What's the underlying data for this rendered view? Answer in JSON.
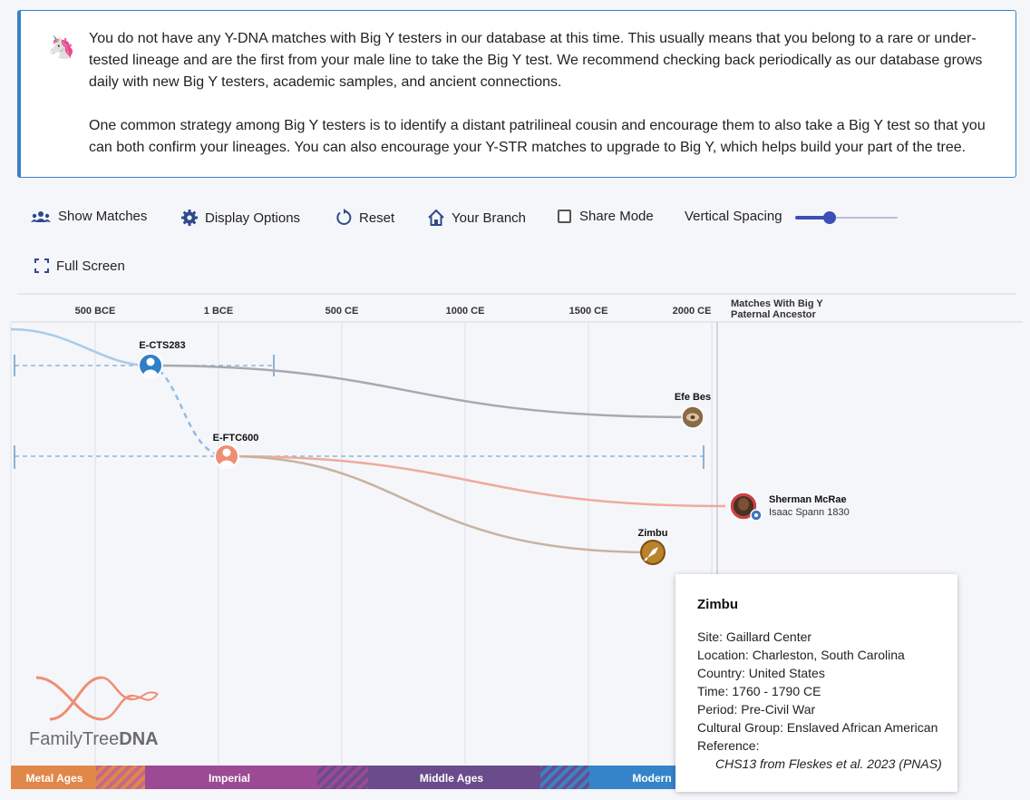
{
  "notice": {
    "emoji": "🦄",
    "paragraph1": "You do not have any Y-DNA matches with Big Y testers in our database at this time. This usually means that you belong to a rare or under-tested lineage and are the first from your male line to take the Big Y test. We recommend checking back periodically as our database grows daily with new Big Y testers, academic samples, and ancient connections.",
    "paragraph2": "One common strategy among Big Y testers is to identify a distant patrilineal cousin and encourage them to also take a Big Y test so that you can both confirm your lineages. You can also encourage your Y-STR matches to upgrade to Big Y, which helps build your part of the tree."
  },
  "toolbar": {
    "show_matches": "Show Matches",
    "display_options": "Display Options",
    "reset": "Reset",
    "your_branch": "Your Branch",
    "share_mode": "Share Mode",
    "vertical_spacing": "Vertical Spacing",
    "full_screen": "Full Screen"
  },
  "timeline": {
    "axis_ticks": [
      "500 BCE",
      "1 BCE",
      "500 CE",
      "1000 CE",
      "1500 CE",
      "2000 CE"
    ],
    "matches_header_line1": "Matches With Big Y",
    "matches_header_line2": "Paternal Ancestor",
    "nodes": {
      "ects283": "E-CTS283",
      "eftc600": "E-FTC600",
      "efe_bes": "Efe Bes",
      "zimbu": "Zimbu"
    },
    "match": {
      "name": "Sherman McRae",
      "ancestor": "Isaac Spann 1830"
    },
    "eras": [
      "Metal Ages",
      "Imperial",
      "Middle Ages",
      "Modern"
    ]
  },
  "logo": {
    "text_light": "FamilyTree",
    "text_bold": "DNA"
  },
  "tooltip": {
    "title": "Zimbu",
    "site": "Site: Gaillard Center",
    "location": "Location: Charleston, South Carolina",
    "country": "Country: United States",
    "time": "Time: 1760 - 1790 CE",
    "period": "Period: Pre-Civil War",
    "cultural_group": "Cultural Group: Enslaved African American",
    "reference_label": "Reference:",
    "reference": "CHS13 from Fleskes et al. 2023 (PNAS)"
  },
  "colors": {
    "accent": "#3b82c4",
    "slider": "#3d4fb5",
    "metal_ages": "#e0874a",
    "imperial": "#9c4a93",
    "middle_ages": "#6a4c8c",
    "modern": "#3584c9"
  }
}
